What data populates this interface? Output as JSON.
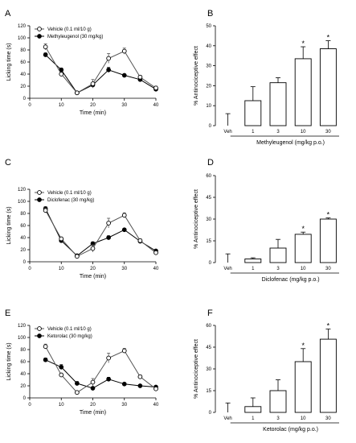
{
  "chart_data": [
    {
      "panel": "A",
      "type": "line",
      "xlabel": "Time (min)",
      "ylabel": "Licking time (s)",
      "xlim": [
        0,
        40
      ],
      "ylim": [
        0,
        120
      ],
      "xticks": [
        "0",
        "10",
        "20",
        "30",
        "40"
      ],
      "yticks": [
        "0",
        "20",
        "40",
        "60",
        "80",
        "100",
        "120"
      ],
      "x": [
        5,
        10,
        15,
        20,
        25,
        30,
        35,
        40
      ],
      "series": [
        {
          "name": "Vehicle (0.1 ml/10 g)",
          "marker": "open-circle",
          "values": [
            85,
            40,
            9,
            24,
            66,
            78,
            35,
            17
          ],
          "errors": [
            5,
            3,
            2,
            7,
            8,
            5,
            3,
            3
          ]
        },
        {
          "name": "Methyleugenol (30 mg/kg)",
          "marker": "filled-circle",
          "values": [
            72,
            47,
            9,
            22,
            47,
            38,
            31,
            15
          ],
          "errors": [
            3,
            3,
            2,
            3,
            4,
            2,
            2,
            2
          ]
        }
      ]
    },
    {
      "panel": "B",
      "type": "bar",
      "xlabel": "Methyleugenol (mg/kg p.o.)",
      "ylabel": "% Antinociceptive effect",
      "ylim": [
        0,
        50
      ],
      "yticks": [
        "0",
        "10",
        "20",
        "30",
        "40",
        "50"
      ],
      "categories": [
        "Veh",
        "1",
        "3",
        "10",
        "30"
      ],
      "values": [
        0,
        12.5,
        21.5,
        33.5,
        38.5
      ],
      "errors": [
        6,
        7,
        2.5,
        6,
        4
      ],
      "significant": [
        false,
        false,
        false,
        true,
        true
      ],
      "star_label": "*"
    },
    {
      "panel": "C",
      "type": "line",
      "xlabel": "Time (min)",
      "ylabel": "Licking time (s)",
      "xlim": [
        0,
        40
      ],
      "ylim": [
        0,
        120
      ],
      "xticks": [
        "0",
        "10",
        "20",
        "30",
        "40"
      ],
      "yticks": [
        "0",
        "20",
        "40",
        "60",
        "80",
        "100",
        "120"
      ],
      "x": [
        5,
        10,
        15,
        20,
        25,
        30,
        35,
        40
      ],
      "series": [
        {
          "name": "Vehicle (0.1 ml/10 g)",
          "marker": "open-circle",
          "values": [
            85,
            38,
            9,
            22,
            64,
            77,
            35,
            15
          ],
          "errors": [
            4,
            3,
            2,
            6,
            8,
            4,
            3,
            3
          ]
        },
        {
          "name": "Diclofenac (30 mg/kg)",
          "marker": "filled-circle",
          "values": [
            88,
            35,
            10,
            30,
            40,
            53,
            34,
            18
          ],
          "errors": [
            3,
            3,
            2,
            3,
            3,
            2,
            2,
            2
          ]
        }
      ]
    },
    {
      "panel": "D",
      "type": "bar",
      "xlabel": "Diclofenac (mg/kg p.o.)",
      "ylabel": "% Antinociceptive effect",
      "ylim": [
        0,
        60
      ],
      "yticks": [
        "0",
        "15",
        "30",
        "45",
        "60"
      ],
      "categories": [
        "Veh",
        "1",
        "3",
        "10",
        "30"
      ],
      "values": [
        0,
        2.5,
        10,
        19.5,
        30
      ],
      "errors": [
        6,
        0.8,
        6,
        1.5,
        0.8
      ],
      "significant": [
        false,
        false,
        false,
        true,
        true
      ],
      "star_label": "*"
    },
    {
      "panel": "E",
      "type": "line",
      "xlabel": "Time (min)",
      "ylabel": "Licking time (s)",
      "xlim": [
        0,
        40
      ],
      "ylim": [
        0,
        120
      ],
      "xticks": [
        "0",
        "10",
        "20",
        "30",
        "40"
      ],
      "yticks": [
        "0",
        "20",
        "40",
        "60",
        "80",
        "100",
        "120"
      ],
      "x": [
        5,
        10,
        15,
        20,
        25,
        30,
        35,
        40
      ],
      "series": [
        {
          "name": "Vehicle (0.1 ml/10 g)",
          "marker": "open-circle",
          "values": [
            85,
            38,
            9,
            26,
            66,
            78,
            35,
            15
          ],
          "errors": [
            4,
            3,
            2,
            6,
            8,
            4,
            3,
            3
          ]
        },
        {
          "name": "Ketorolac (30 mg/kg)",
          "marker": "filled-circle",
          "values": [
            63,
            51,
            24,
            16,
            31,
            23,
            20,
            18
          ],
          "errors": [
            3,
            4,
            3,
            2,
            3,
            2,
            2,
            2
          ]
        }
      ]
    },
    {
      "panel": "F",
      "type": "bar",
      "xlabel": "Ketorolac (mg/kg p.o.)",
      "ylabel": "% Antinociceptive effect",
      "ylim": [
        0,
        60
      ],
      "yticks": [
        "0",
        "15",
        "30",
        "45",
        "60"
      ],
      "categories": [
        "Veh",
        "1",
        "3",
        "10",
        "30"
      ],
      "values": [
        0,
        4,
        15,
        35,
        50.5
      ],
      "errors": [
        6.5,
        6,
        7.5,
        9,
        7
      ],
      "significant": [
        false,
        false,
        false,
        true,
        true
      ],
      "star_label": "*"
    }
  ]
}
